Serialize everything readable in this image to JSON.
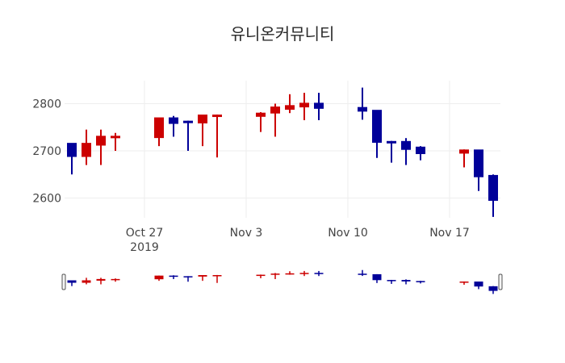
{
  "chart_data": {
    "type": "candlestick",
    "title": "유니온커뮤니티",
    "xlabel": "",
    "ylabel": "",
    "ylim": [
      2545,
      2850
    ],
    "yticks": [
      2600,
      2700,
      2800
    ],
    "xticks": [
      {
        "date": "2019-10-27",
        "label": "Oct 27",
        "sublabel": "2019"
      },
      {
        "date": "2019-11-03",
        "label": "Nov 3",
        "sublabel": ""
      },
      {
        "date": "2019-11-10",
        "label": "Nov 10",
        "sublabel": ""
      },
      {
        "date": "2019-11-17",
        "label": "Nov 17",
        "sublabel": ""
      }
    ],
    "grid": true,
    "legend": false,
    "rangeslider": true,
    "increasing_color": "#cc0000",
    "decreasing_color": "#000099",
    "series": [
      {
        "date": "2019-10-22",
        "open": 2716,
        "high": 2716,
        "low": 2650,
        "close": 2688
      },
      {
        "date": "2019-10-23",
        "open": 2688,
        "high": 2745,
        "low": 2670,
        "close": 2716
      },
      {
        "date": "2019-10-24",
        "open": 2712,
        "high": 2745,
        "low": 2670,
        "close": 2731
      },
      {
        "date": "2019-10-25",
        "open": 2729,
        "high": 2738,
        "low": 2700,
        "close": 2731
      },
      {
        "date": "2019-10-28",
        "open": 2728,
        "high": 2770,
        "low": 2710,
        "close": 2770
      },
      {
        "date": "2019-10-29",
        "open": 2770,
        "high": 2774,
        "low": 2730,
        "close": 2758
      },
      {
        "date": "2019-10-30",
        "open": 2763,
        "high": 2764,
        "low": 2700,
        "close": 2760
      },
      {
        "date": "2019-10-31",
        "open": 2759,
        "high": 2776,
        "low": 2710,
        "close": 2776
      },
      {
        "date": "2019-11-01",
        "open": 2774,
        "high": 2777,
        "low": 2686,
        "close": 2776
      },
      {
        "date": "2019-11-04",
        "open": 2773,
        "high": 2782,
        "low": 2740,
        "close": 2780
      },
      {
        "date": "2019-11-05",
        "open": 2780,
        "high": 2800,
        "low": 2730,
        "close": 2793
      },
      {
        "date": "2019-11-06",
        "open": 2788,
        "high": 2820,
        "low": 2780,
        "close": 2796
      },
      {
        "date": "2019-11-07",
        "open": 2793,
        "high": 2823,
        "low": 2765,
        "close": 2801
      },
      {
        "date": "2019-11-08",
        "open": 2801,
        "high": 2823,
        "low": 2765,
        "close": 2790
      },
      {
        "date": "2019-11-11",
        "open": 2792,
        "high": 2834,
        "low": 2766,
        "close": 2784
      },
      {
        "date": "2019-11-12",
        "open": 2786,
        "high": 2786,
        "low": 2685,
        "close": 2718
      },
      {
        "date": "2019-11-13",
        "open": 2720,
        "high": 2721,
        "low": 2675,
        "close": 2718
      },
      {
        "date": "2019-11-14",
        "open": 2720,
        "high": 2727,
        "low": 2670,
        "close": 2703
      },
      {
        "date": "2019-11-15",
        "open": 2708,
        "high": 2710,
        "low": 2680,
        "close": 2694
      },
      {
        "date": "2019-11-18",
        "open": 2695,
        "high": 2703,
        "low": 2665,
        "close": 2702
      },
      {
        "date": "2019-11-19",
        "open": 2702,
        "high": 2702,
        "low": 2615,
        "close": 2645
      },
      {
        "date": "2019-11-20",
        "open": 2648,
        "high": 2650,
        "low": 2560,
        "close": 2595
      }
    ]
  }
}
